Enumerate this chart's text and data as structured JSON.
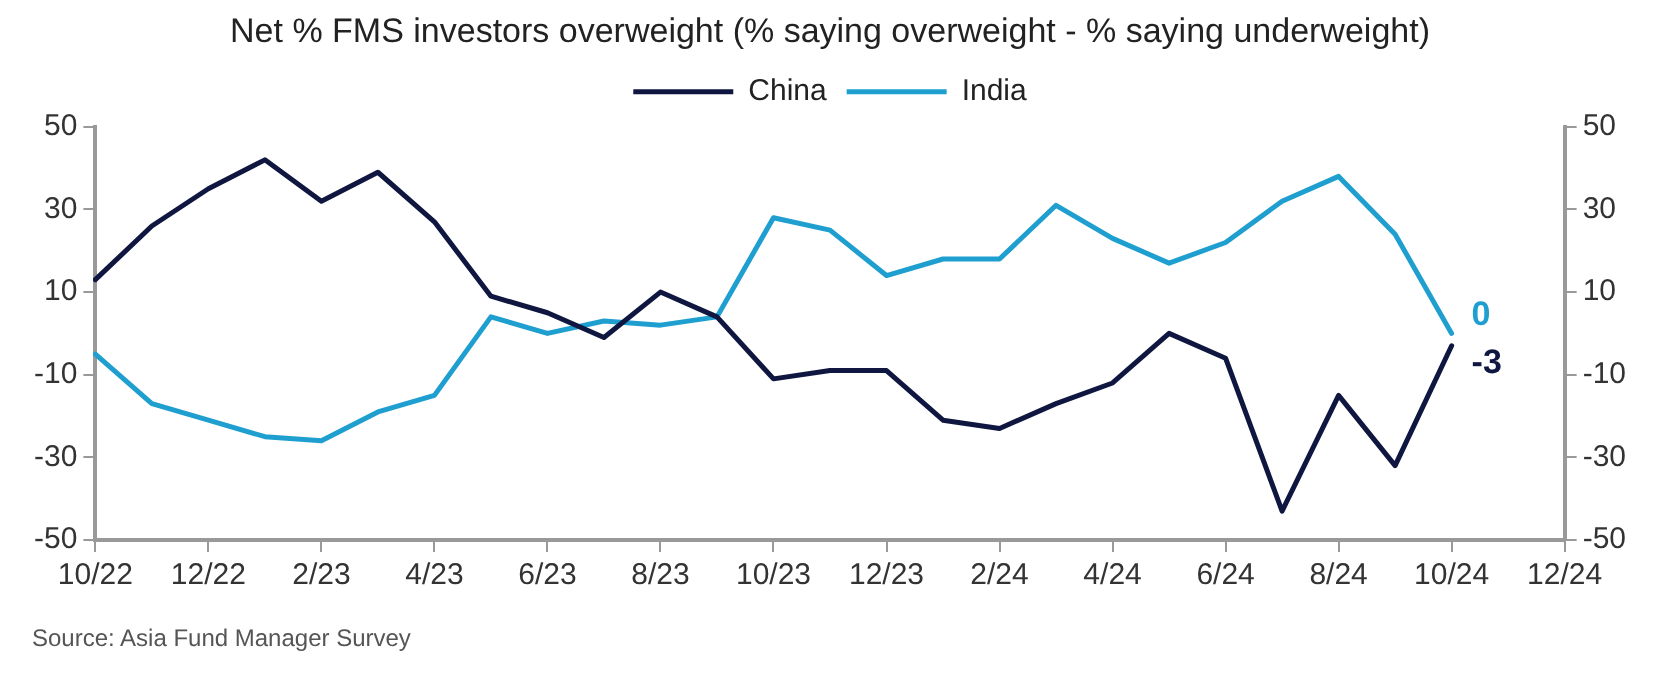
{
  "chart_data": {
    "type": "line",
    "title": "Net % FMS investors overweight (% saying overweight - % saying underweight)",
    "categories": [
      "10/22",
      null,
      "12/22",
      null,
      "2/23",
      null,
      "4/23",
      null,
      "6/23",
      null,
      "8/23",
      null,
      "10/23",
      null,
      "12/23",
      null,
      "2/24",
      null,
      "4/24",
      null,
      "6/24",
      null,
      "8/24",
      null,
      "10/24",
      null,
      "12/24"
    ],
    "series": [
      {
        "name": "China",
        "color": "#0f1740",
        "values": [
          13,
          26,
          35,
          42,
          32,
          39,
          27,
          9,
          5,
          -1,
          10,
          4,
          -11,
          -9,
          -9,
          -21,
          -23,
          -17,
          -12,
          0,
          -6,
          -43,
          -15,
          -32,
          -3,
          null,
          null
        ],
        "value_labels": [
          null,
          null,
          null,
          null,
          null,
          null,
          null,
          null,
          null,
          null,
          null,
          null,
          null,
          null,
          null,
          null,
          null,
          null,
          null,
          null,
          null,
          null,
          null,
          null,
          "-3",
          null,
          null
        ]
      },
      {
        "name": "India",
        "color": "#1f9fd0",
        "values": [
          -5,
          -17,
          -21,
          -25,
          -26,
          -19,
          -15,
          4,
          0,
          3,
          2,
          4,
          28,
          25,
          14,
          18,
          18,
          31,
          23,
          17,
          22,
          32,
          38,
          24,
          0,
          null,
          null
        ],
        "value_labels": [
          null,
          null,
          null,
          null,
          null,
          null,
          null,
          null,
          null,
          null,
          null,
          null,
          null,
          null,
          null,
          null,
          null,
          null,
          null,
          null,
          null,
          null,
          null,
          null,
          "0",
          null,
          null
        ]
      }
    ],
    "ylim": [
      -50,
      50
    ],
    "yticks": [
      -50,
      -30,
      -10,
      10,
      30,
      50
    ],
    "y2lim": [
      -50,
      50
    ],
    "y2ticks": [
      -50,
      -30,
      -10,
      10,
      30,
      50
    ],
    "grid": false,
    "legend": "top",
    "marker": "none",
    "line_style": "solid",
    "annotations": [
      "Source: Asia Fund Manager Survey"
    ]
  }
}
